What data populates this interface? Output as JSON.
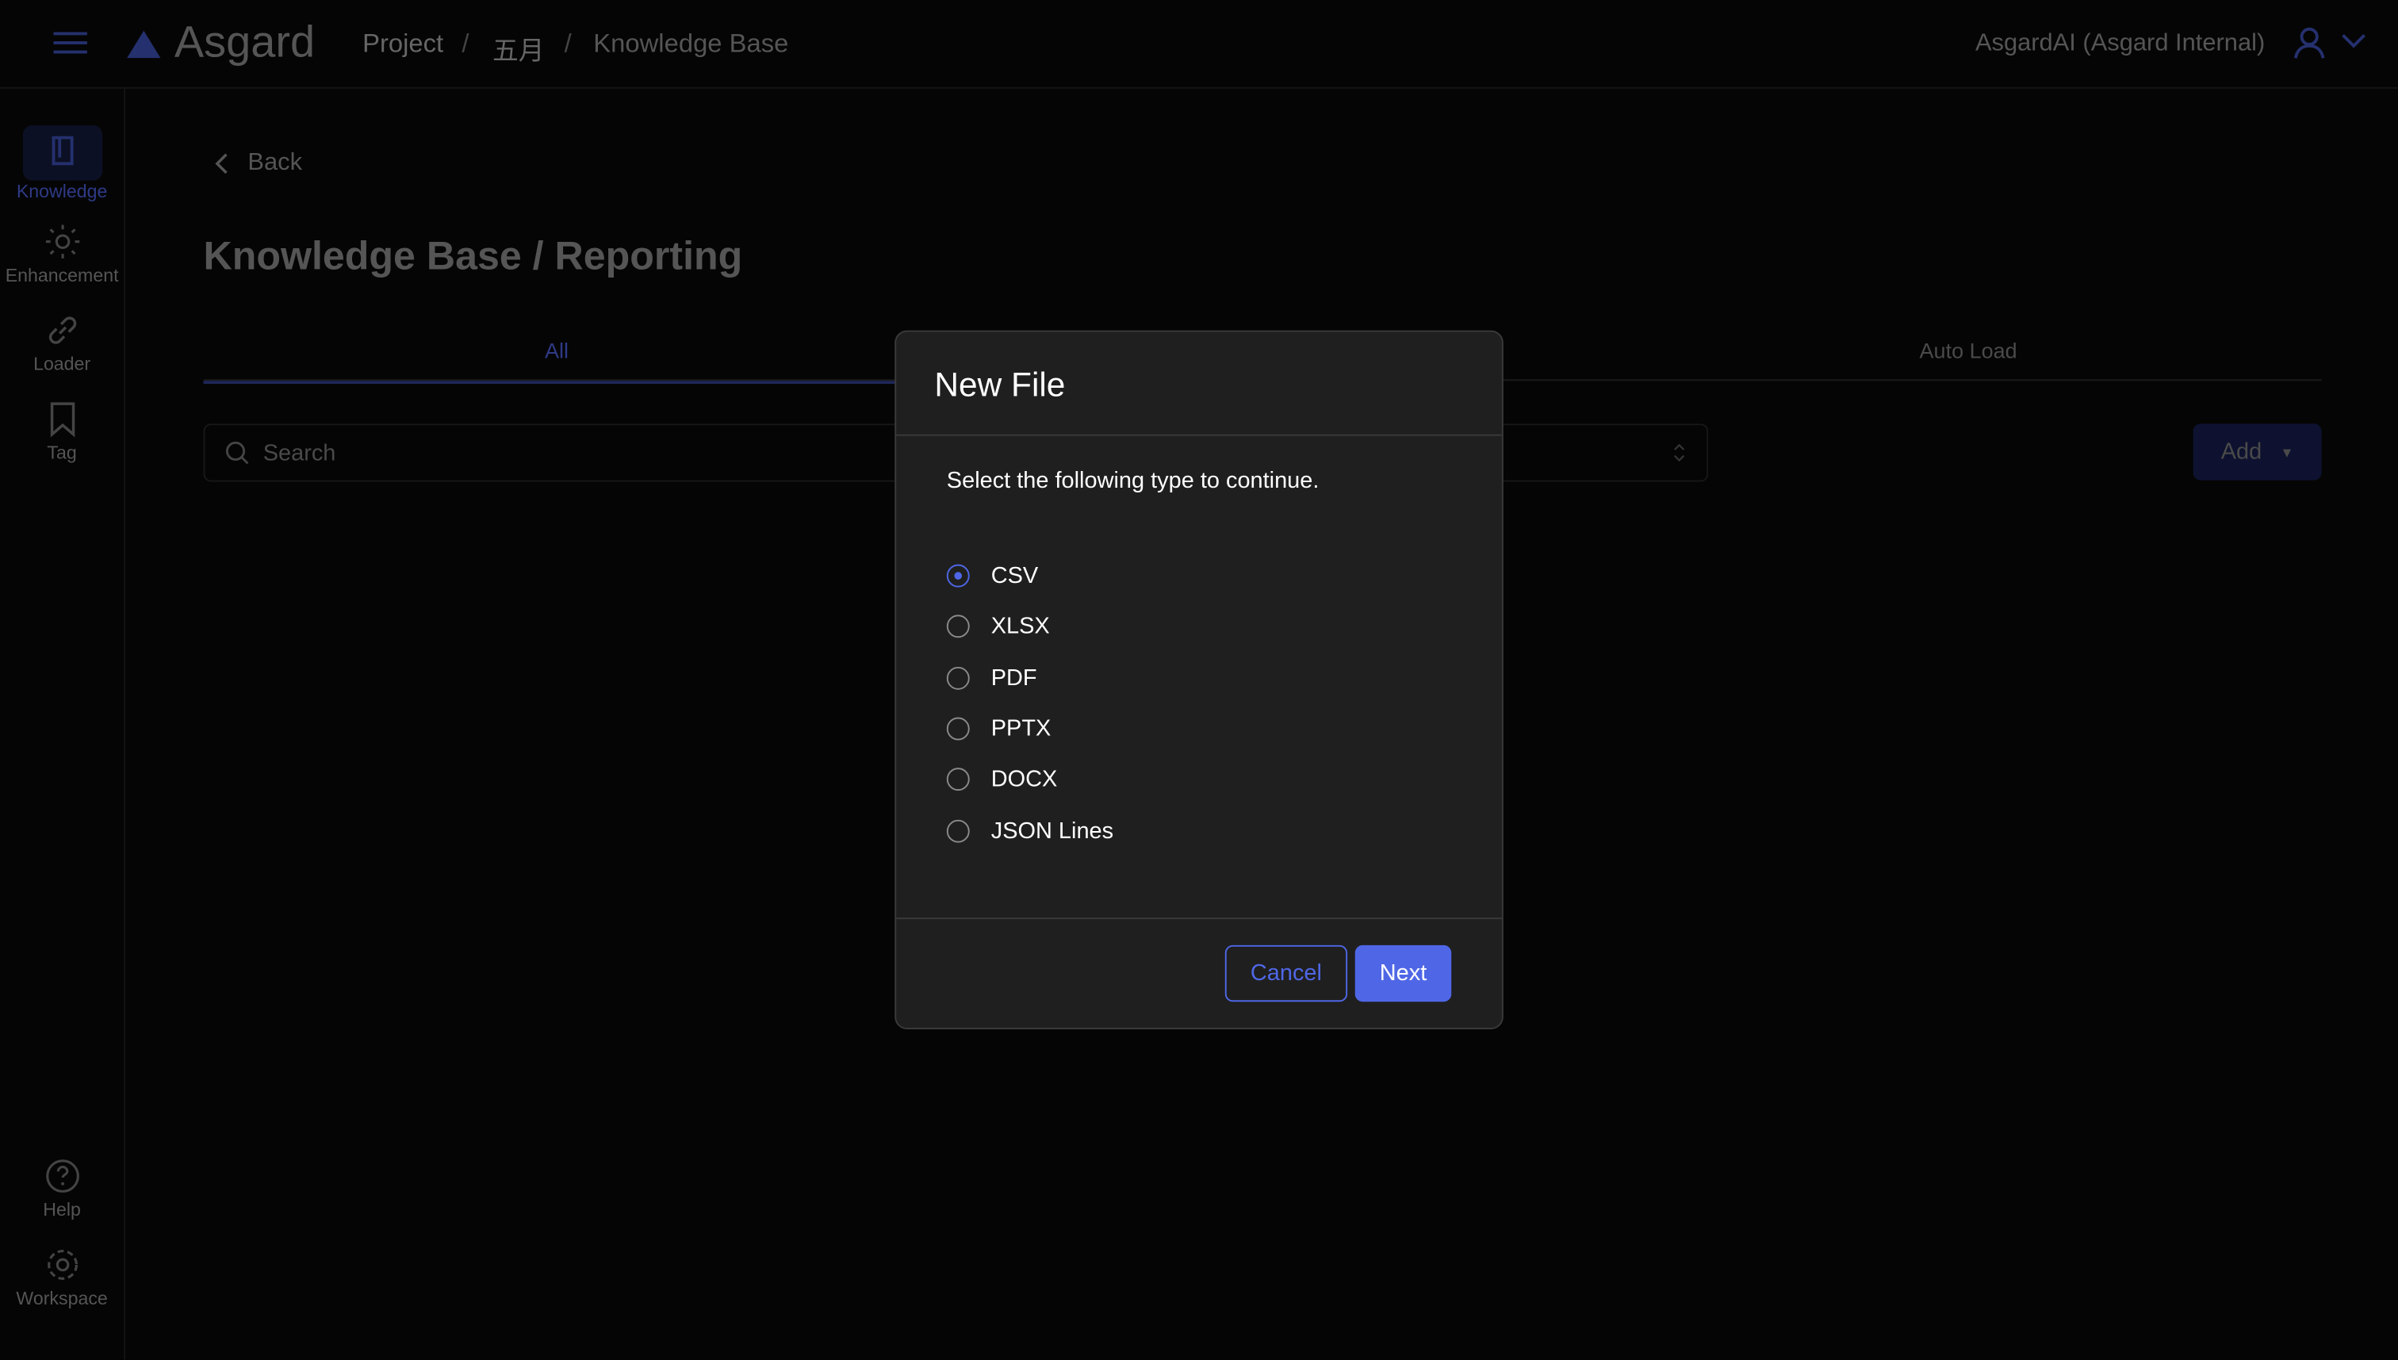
{
  "header": {
    "brand": "Asgard",
    "breadcrumb": [
      "Project",
      "五月",
      "Knowledge Base"
    ],
    "separator": "/",
    "account": "AsgardAI (Asgard Internal)"
  },
  "sidebar": {
    "items": [
      {
        "label": "Knowledge",
        "icon": "book-icon",
        "active": true
      },
      {
        "label": "Enhancement",
        "icon": "sun-icon"
      },
      {
        "label": "Loader",
        "icon": "link-icon"
      },
      {
        "label": "Tag",
        "icon": "bookmark-icon"
      }
    ],
    "bottom": [
      {
        "label": "Help",
        "icon": "help-icon"
      },
      {
        "label": "Workspace",
        "icon": "gear-icon"
      }
    ]
  },
  "main": {
    "back": "Back",
    "title": "Knowledge Base / Reporting",
    "tabs": [
      {
        "label": "All",
        "active": true
      },
      {
        "label": "Auto Load"
      }
    ],
    "search_placeholder": "Search",
    "add_label": "Add"
  },
  "modal": {
    "title": "New File",
    "prompt": "Select the following type to continue.",
    "options": [
      "CSV",
      "XLSX",
      "PDF",
      "PPTX",
      "DOCX",
      "JSON Lines"
    ],
    "selected": "CSV",
    "cancel": "Cancel",
    "next": "Next"
  },
  "colors": {
    "accent": "#4f67e6",
    "modal_bg": "#1f1f1f"
  }
}
